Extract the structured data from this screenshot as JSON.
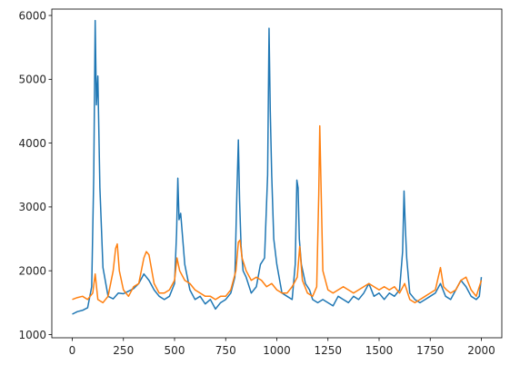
{
  "chart_data": {
    "type": "line",
    "title": "",
    "xlabel": "",
    "ylabel": "",
    "xlim": [
      -100,
      2100
    ],
    "ylim": [
      950,
      6100
    ],
    "xticks": [
      0,
      250,
      500,
      750,
      1000,
      1250,
      1500,
      1750,
      2000
    ],
    "yticks": [
      1000,
      2000,
      3000,
      4000,
      5000,
      6000
    ],
    "grid": false,
    "legend": "none",
    "series": [
      {
        "color": "#1f77b4",
        "x": [
          0,
          25,
          50,
          75,
          95,
          105,
          112,
          118,
          125,
          135,
          150,
          175,
          200,
          225,
          250,
          275,
          300,
          325,
          350,
          375,
          400,
          425,
          450,
          475,
          500,
          510,
          516,
          522,
          530,
          540,
          550,
          575,
          600,
          625,
          650,
          675,
          700,
          725,
          750,
          775,
          795,
          805,
          812,
          818,
          825,
          835,
          850,
          875,
          900,
          920,
          940,
          955,
          962,
          968,
          975,
          985,
          1000,
          1025,
          1050,
          1075,
          1090,
          1098,
          1104,
          1110,
          1120,
          1140,
          1160,
          1175,
          1200,
          1225,
          1250,
          1275,
          1300,
          1325,
          1350,
          1375,
          1400,
          1425,
          1450,
          1475,
          1500,
          1525,
          1550,
          1575,
          1600,
          1615,
          1622,
          1628,
          1635,
          1650,
          1675,
          1700,
          1725,
          1750,
          1775,
          1800,
          1825,
          1850,
          1875,
          1900,
          1925,
          1950,
          1975,
          1990,
          2000
        ],
        "y": [
          1320,
          1360,
          1380,
          1420,
          1750,
          3500,
          5920,
          4600,
          5050,
          3300,
          2050,
          1600,
          1560,
          1650,
          1640,
          1680,
          1720,
          1800,
          1950,
          1850,
          1700,
          1600,
          1550,
          1600,
          1800,
          2600,
          3450,
          2800,
          2900,
          2500,
          2100,
          1700,
          1550,
          1600,
          1480,
          1550,
          1400,
          1500,
          1550,
          1650,
          1900,
          3250,
          4050,
          3100,
          2400,
          2000,
          1900,
          1650,
          1750,
          2100,
          2200,
          3500,
          5800,
          4500,
          3500,
          2500,
          2100,
          1650,
          1600,
          1550,
          2100,
          3420,
          3300,
          2500,
          2100,
          1800,
          1700,
          1550,
          1500,
          1550,
          1500,
          1450,
          1600,
          1550,
          1500,
          1600,
          1550,
          1650,
          1800,
          1600,
          1650,
          1550,
          1650,
          1600,
          1700,
          2300,
          3250,
          2700,
          2200,
          1650,
          1550,
          1500,
          1550,
          1600,
          1650,
          1800,
          1600,
          1550,
          1700,
          1850,
          1750,
          1600,
          1550,
          1600,
          1900
        ]
      },
      {
        "color": "#ff7f0e",
        "x": [
          0,
          25,
          50,
          75,
          100,
          112,
          125,
          150,
          175,
          200,
          212,
          220,
          230,
          250,
          275,
          300,
          325,
          350,
          362,
          375,
          400,
          425,
          450,
          475,
          500,
          512,
          525,
          550,
          575,
          600,
          625,
          650,
          675,
          700,
          725,
          750,
          775,
          800,
          812,
          820,
          830,
          850,
          875,
          900,
          925,
          950,
          975,
          1000,
          1025,
          1050,
          1075,
          1100,
          1112,
          1125,
          1150,
          1175,
          1195,
          1205,
          1210,
          1215,
          1225,
          1250,
          1275,
          1300,
          1325,
          1350,
          1375,
          1400,
          1425,
          1450,
          1475,
          1500,
          1525,
          1550,
          1575,
          1600,
          1625,
          1650,
          1675,
          1700,
          1725,
          1750,
          1775,
          1800,
          1815,
          1830,
          1850,
          1875,
          1900,
          1925,
          1950,
          1975,
          2000
        ],
        "y": [
          1550,
          1580,
          1600,
          1550,
          1650,
          1950,
          1550,
          1500,
          1600,
          2000,
          2350,
          2420,
          2000,
          1700,
          1600,
          1750,
          1800,
          2200,
          2300,
          2250,
          1800,
          1650,
          1650,
          1700,
          1850,
          2200,
          2000,
          1850,
          1800,
          1700,
          1650,
          1600,
          1600,
          1550,
          1600,
          1600,
          1700,
          2000,
          2450,
          2480,
          2200,
          2000,
          1850,
          1900,
          1850,
          1750,
          1800,
          1700,
          1650,
          1650,
          1750,
          1900,
          2380,
          1850,
          1650,
          1600,
          1750,
          3200,
          4270,
          3500,
          2000,
          1700,
          1650,
          1700,
          1750,
          1700,
          1650,
          1700,
          1750,
          1800,
          1750,
          1700,
          1750,
          1700,
          1750,
          1650,
          1800,
          1550,
          1500,
          1550,
          1600,
          1650,
          1700,
          2050,
          1750,
          1700,
          1650,
          1700,
          1850,
          1900,
          1700,
          1600,
          1850
        ]
      }
    ]
  }
}
